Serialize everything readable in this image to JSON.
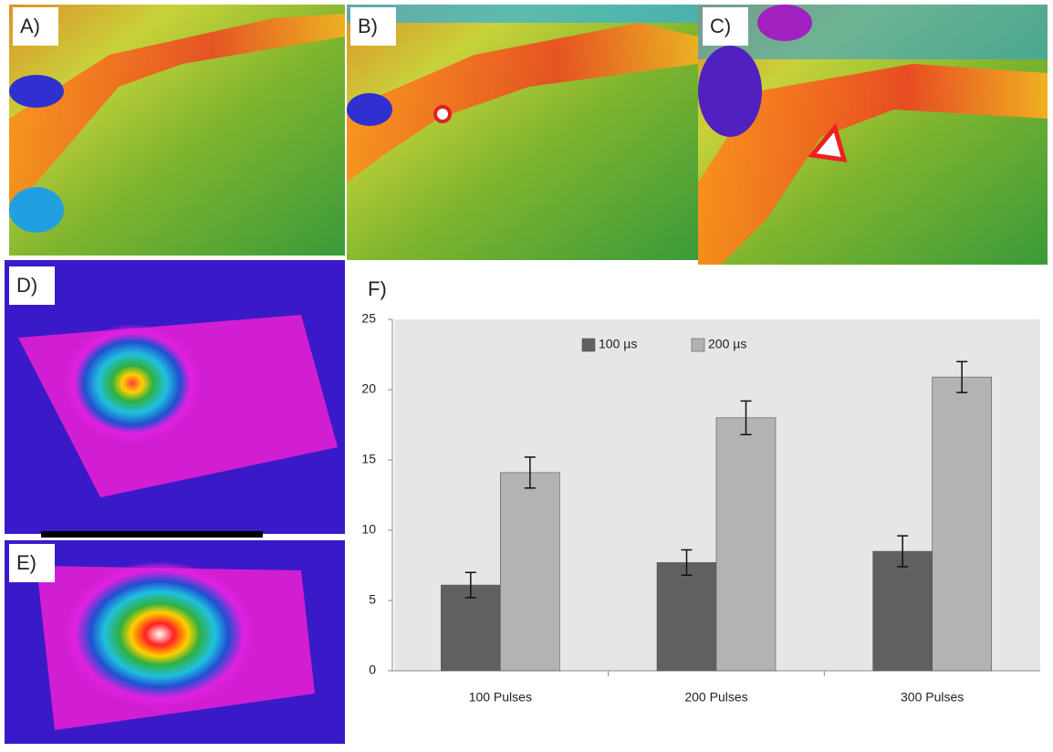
{
  "panels": [
    {
      "label": "A)"
    },
    {
      "label": "B)"
    },
    {
      "label": "C)"
    },
    {
      "label": "D)"
    },
    {
      "label": "E)"
    },
    {
      "label": "F)"
    }
  ],
  "chart_data": {
    "type": "bar",
    "categories": [
      "100 Pulses",
      "200 Pulses",
      "300 Pulses"
    ],
    "series": [
      {
        "name": "100 µs",
        "color": "#606060",
        "values": [
          6.1,
          7.7,
          8.5
        ],
        "errors": [
          0.9,
          0.9,
          1.1
        ]
      },
      {
        "name": "200 µs",
        "color": "#b3b3b3",
        "values": [
          14.1,
          18.0,
          20.9
        ],
        "errors": [
          1.1,
          1.2,
          1.1
        ]
      }
    ],
    "ylim": [
      0,
      25
    ],
    "yticks": [
      0,
      5,
      10,
      15,
      20,
      25
    ],
    "legend": "top"
  }
}
